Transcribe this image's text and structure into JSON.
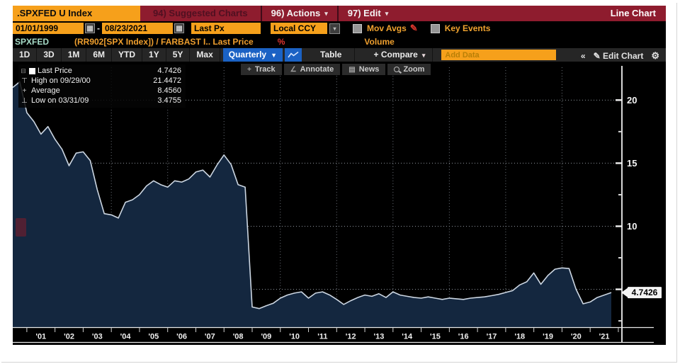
{
  "icons": {
    "caret_down": "▾",
    "caret_solid": "▼",
    "collapse": "«",
    "pencil": "✎",
    "gear": "⚙",
    "calendar": "▦",
    "news": "▤",
    "angle": "∠",
    "plus": "+",
    "dash": "-"
  },
  "window": {
    "title": ".SPXFED U Index",
    "suggested_charts": "94) Suggested Charts",
    "actions": "96) Actions",
    "edit": "97) Edit",
    "mode": "Line Chart"
  },
  "controls": {
    "date_from": "01/01/1999",
    "date_to": "08/23/2021",
    "price_field": "Last Px",
    "currency": "Local CCY",
    "mov_avgs": "Mov Avgs",
    "key_events": "Key Events"
  },
  "security_row": {
    "ticker": "SPXFED",
    "formula": "(RR902[SPX Index]) / FARBAST I.. Last Price",
    "percent": "%",
    "volume": "Volume"
  },
  "toolbar": {
    "ranges": [
      "1D",
      "3D",
      "1M",
      "6M",
      "YTD",
      "1Y",
      "5Y",
      "Max"
    ],
    "period": "Quarterly",
    "table": "Table",
    "compare": "+ Compare",
    "add_data_placeholder": "Add Data",
    "edit_chart": "Edit Chart"
  },
  "chart_tools": [
    {
      "icon": "plus",
      "label": "Track"
    },
    {
      "icon": "angle",
      "label": "Annotate"
    },
    {
      "icon": "news",
      "label": "News"
    },
    {
      "icon": "magnifier",
      "label": "Zoom"
    }
  ],
  "legend": [
    {
      "marker": "square",
      "label": "Last Price",
      "value": "4.7426"
    },
    {
      "marker": "⊤",
      "label": "High on 09/29/00",
      "value": "21.4472"
    },
    {
      "marker": "+",
      "label": "Average",
      "value": "8.4560"
    },
    {
      "marker": "⊥",
      "label": "Low on 03/31/09",
      "value": "3.4755"
    }
  ],
  "chart_data": {
    "type": "area",
    "series_name": "Last Price",
    "frequency": "Quarterly",
    "date_range": [
      "01/01/1999",
      "08/23/2021"
    ],
    "x_start": 2000.5,
    "x_step_years": 0.25,
    "values": [
      21.0,
      21.45,
      19.0,
      18.3,
      17.3,
      17.9,
      16.9,
      16.1,
      14.8,
      15.8,
      15.9,
      15.2,
      12.9,
      11.0,
      10.9,
      10.65,
      11.9,
      12.1,
      12.5,
      13.2,
      13.6,
      13.3,
      13.1,
      13.6,
      13.5,
      13.75,
      14.3,
      14.45,
      13.9,
      14.85,
      15.65,
      14.9,
      13.3,
      13.1,
      3.6,
      3.4755,
      3.7,
      3.9,
      4.3,
      4.55,
      4.7,
      4.8,
      4.3,
      4.7,
      4.8,
      4.55,
      4.2,
      3.8,
      4.1,
      4.35,
      4.55,
      4.45,
      4.65,
      4.35,
      4.8,
      4.55,
      4.45,
      4.35,
      4.3,
      4.4,
      4.3,
      4.2,
      4.3,
      4.25,
      4.2,
      4.3,
      4.35,
      4.4,
      4.5,
      4.6,
      4.75,
      4.9,
      5.35,
      5.6,
      6.3,
      5.4,
      6.1,
      6.6,
      6.7,
      6.65,
      5.0,
      3.85,
      4.0,
      4.35,
      4.55,
      4.7426
    ],
    "x_tick_labels": [
      "'01",
      "'02",
      "'03",
      "'04",
      "'05",
      "'06",
      "'07",
      "'08",
      "'09",
      "'10",
      "'11",
      "'12",
      "'13",
      "'14",
      "'15",
      "'16",
      "'17",
      "'18",
      "'19",
      "'20",
      "'21"
    ],
    "grid_years": [
      2004,
      2006,
      2008,
      2010,
      2012,
      2014,
      2016,
      2018,
      2020
    ],
    "ylim": [
      2,
      23.05
    ],
    "y_gridlines": [
      20,
      15,
      10,
      5
    ],
    "y_ticks_major": [
      20,
      15,
      10,
      5
    ],
    "y_ticks_minor": [
      17.5,
      12.5,
      7.5,
      2.5
    ],
    "y_tick_labels": [
      {
        "v": 20,
        "label": "20"
      },
      {
        "v": 15,
        "label": "15"
      },
      {
        "v": 10,
        "label": "10"
      }
    ],
    "last_price": 4.7426,
    "last_price_label": "4.7426",
    "high": {
      "date": "09/29/00",
      "value": 21.4472
    },
    "average": 8.456,
    "low": {
      "date": "03/31/09",
      "value": 3.4755
    },
    "legend_position": "top-left",
    "grid": true,
    "colors": {
      "area": "#14273f",
      "line": "#ccd6e2",
      "grid_h": "#8e949c",
      "grid_v": "#676d75",
      "axis": "#f0f0f0",
      "header_bg": "#8e1c2e",
      "amber": "#f6a01b",
      "amber_text": "#f0a32f",
      "selected_blue": "#1b62c4",
      "red": "#d8352c"
    }
  }
}
